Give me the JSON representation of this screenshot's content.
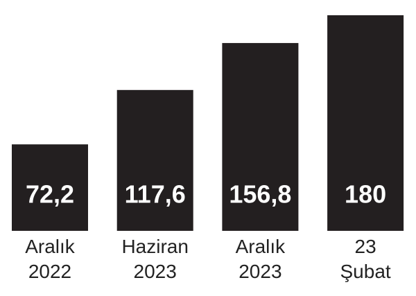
{
  "chart_data": {
    "type": "bar",
    "categories": [
      "Aralık 2022",
      "Haziran 2023",
      "Aralık 2023",
      "23 Şubat"
    ],
    "values": [
      72.2,
      117.6,
      156.8,
      180
    ],
    "value_labels": [
      "72,2",
      "117,6",
      "156,8",
      "180"
    ],
    "color": "#231f20"
  }
}
